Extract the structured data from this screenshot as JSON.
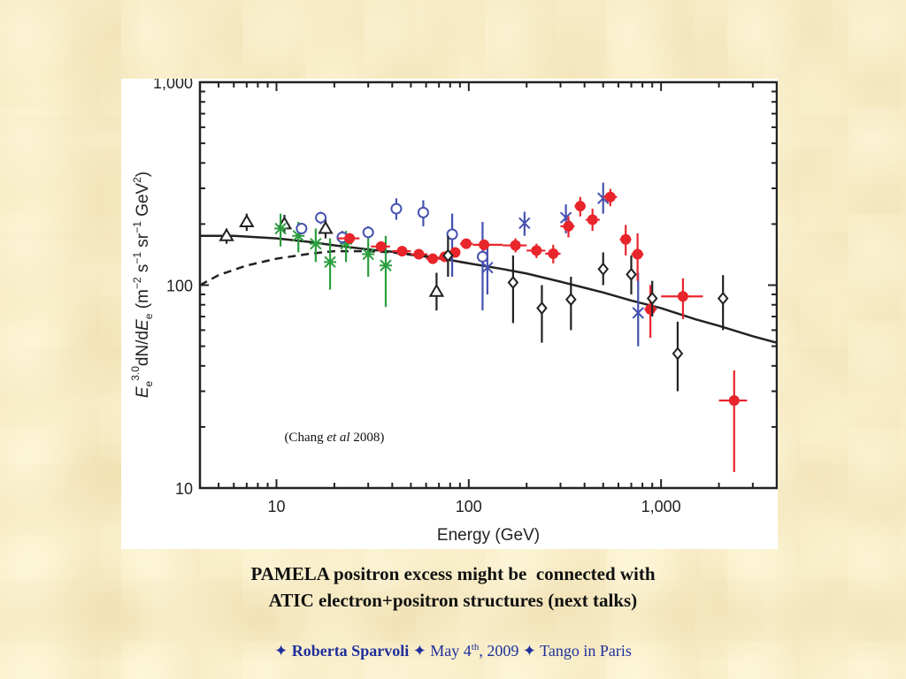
{
  "chart_data": {
    "type": "scatter",
    "xscale": "log",
    "yscale": "log",
    "xlim": [
      4,
      4000
    ],
    "ylim": [
      10,
      1000
    ],
    "xlabel": "Energy (GeV)",
    "ylabel_parts": {
      "E": "E",
      "sub_e": "e",
      "sup_exp": "3.0",
      "middle": "dN/d",
      "E2": "E",
      "sub_e2": "e",
      "units_open": " (m",
      "exp1": "−2",
      "s": " s",
      "exp2": "−1",
      "sr": " sr",
      "exp3": "−1",
      "gev": " GeV",
      "exp4": "2",
      "close": ")"
    },
    "xticks": [
      {
        "value": 10,
        "label": "10"
      },
      {
        "value": 100,
        "label": "100"
      },
      {
        "value": 1000,
        "label": "1,000"
      }
    ],
    "yticks": [
      {
        "value": 10,
        "label": "10"
      },
      {
        "value": 100,
        "label": "100"
      },
      {
        "value": 1000,
        "label": "1,000"
      }
    ],
    "annotation": {
      "pre": "(Chang ",
      "italic": "et al",
      "post": " 2008)",
      "x": 20,
      "y": 17
    },
    "lines": [
      {
        "style": "solid",
        "color": "#222222",
        "points": [
          [
            4,
            175
          ],
          [
            6,
            175
          ],
          [
            10,
            170
          ],
          [
            15,
            163
          ],
          [
            20,
            157
          ],
          [
            30,
            150
          ],
          [
            40,
            146
          ],
          [
            60,
            139
          ],
          [
            80,
            133
          ],
          [
            100,
            128
          ],
          [
            150,
            120
          ],
          [
            200,
            114
          ],
          [
            300,
            104
          ],
          [
            400,
            97
          ],
          [
            500,
            92
          ],
          [
            700,
            84
          ],
          [
            1000,
            77
          ],
          [
            1500,
            68
          ],
          [
            2000,
            63
          ],
          [
            3000,
            56
          ],
          [
            4000,
            52
          ]
        ]
      },
      {
        "style": "dashed",
        "color": "#222222",
        "points": [
          [
            4,
            100
          ],
          [
            5,
            112
          ],
          [
            7,
            125
          ],
          [
            10,
            135
          ],
          [
            15,
            143
          ],
          [
            20,
            147
          ],
          [
            30,
            147
          ],
          [
            40,
            145
          ],
          [
            60,
            138
          ],
          [
            80,
            133
          ],
          [
            100,
            128
          ]
        ]
      }
    ],
    "series": [
      {
        "marker": "triangle",
        "color": "#222222",
        "points": [
          {
            "x": 5.5,
            "y": 175,
            "ylo": 160,
            "yhi": 190
          },
          {
            "x": 7,
            "y": 205,
            "ylo": 185,
            "yhi": 225
          },
          {
            "x": 11,
            "y": 200,
            "ylo": 180,
            "yhi": 222
          },
          {
            "x": 18,
            "y": 190,
            "ylo": 170,
            "yhi": 212
          },
          {
            "x": 68,
            "y": 93,
            "ylo": 75,
            "yhi": 115
          }
        ]
      },
      {
        "marker": "star",
        "color": "#2a9e3e",
        "points": [
          {
            "x": 10.5,
            "y": 190,
            "ylo": 155,
            "yhi": 225
          },
          {
            "x": 13,
            "y": 175,
            "ylo": 145,
            "yhi": 205
          },
          {
            "x": 16,
            "y": 160,
            "ylo": 130,
            "yhi": 190
          },
          {
            "x": 19,
            "y": 130,
            "ylo": 95,
            "yhi": 170
          },
          {
            "x": 23,
            "y": 160,
            "ylo": 130,
            "yhi": 185
          },
          {
            "x": 30,
            "y": 142,
            "ylo": 110,
            "yhi": 180
          },
          {
            "x": 37,
            "y": 125,
            "ylo": 78,
            "yhi": 175
          }
        ]
      },
      {
        "marker": "circle",
        "color": "#4652b0",
        "points": [
          {
            "x": 13.5,
            "y": 190,
            "ylo": 180,
            "yhi": 200
          },
          {
            "x": 17,
            "y": 215,
            "ylo": 200,
            "yhi": 230
          },
          {
            "x": 22,
            "y": 172,
            "ylo": 160,
            "yhi": 185
          },
          {
            "x": 30,
            "y": 182,
            "ylo": 170,
            "yhi": 195
          },
          {
            "x": 42,
            "y": 238,
            "ylo": 210,
            "yhi": 268
          },
          {
            "x": 58,
            "y": 228,
            "ylo": 195,
            "yhi": 262
          },
          {
            "x": 82,
            "y": 178,
            "ylo": 110,
            "yhi": 225
          },
          {
            "x": 118,
            "y": 138,
            "ylo": 75,
            "yhi": 205
          }
        ]
      },
      {
        "marker": "cross",
        "color": "#4652b0",
        "points": [
          {
            "x": 125,
            "y": 122,
            "ylo": 90,
            "yhi": 160
          },
          {
            "x": 195,
            "y": 202,
            "ylo": 175,
            "yhi": 230
          },
          {
            "x": 320,
            "y": 215,
            "ylo": 180,
            "yhi": 250
          },
          {
            "x": 500,
            "y": 268,
            "ylo": 225,
            "yhi": 320
          },
          {
            "x": 760,
            "y": 73,
            "ylo": 50,
            "yhi": 115
          }
        ]
      },
      {
        "marker": "filled-circle",
        "color": "#e8252b",
        "points": [
          {
            "x": 24,
            "y": 170,
            "xlo": 21,
            "xhi": 27,
            "ylo": 162,
            "yhi": 178
          },
          {
            "x": 35,
            "y": 155,
            "xlo": 31,
            "xhi": 39,
            "ylo": 147,
            "yhi": 163
          },
          {
            "x": 45,
            "y": 147,
            "xlo": 40,
            "xhi": 50,
            "ylo": 140,
            "yhi": 154
          },
          {
            "x": 55,
            "y": 142,
            "xlo": 50,
            "xhi": 61,
            "ylo": 135,
            "yhi": 149
          },
          {
            "x": 65,
            "y": 135,
            "xlo": 60,
            "xhi": 72,
            "ylo": 128,
            "yhi": 142
          },
          {
            "x": 75,
            "y": 138,
            "xlo": 70,
            "xhi": 80,
            "ylo": 130,
            "yhi": 146
          },
          {
            "x": 85,
            "y": 145,
            "xlo": 80,
            "xhi": 90,
            "ylo": 137,
            "yhi": 153
          },
          {
            "x": 97,
            "y": 160,
            "xlo": 90,
            "xhi": 105,
            "ylo": 152,
            "yhi": 168
          },
          {
            "x": 120,
            "y": 158,
            "xlo": 105,
            "xhi": 150,
            "ylo": 148,
            "yhi": 168
          },
          {
            "x": 175,
            "y": 157,
            "xlo": 150,
            "xhi": 200,
            "ylo": 145,
            "yhi": 170
          },
          {
            "x": 225,
            "y": 148,
            "xlo": 200,
            "xhi": 250,
            "ylo": 136,
            "yhi": 160
          },
          {
            "x": 275,
            "y": 143,
            "xlo": 250,
            "xhi": 300,
            "ylo": 128,
            "yhi": 158
          },
          {
            "x": 330,
            "y": 195,
            "xlo": 300,
            "xhi": 355,
            "ylo": 172,
            "yhi": 218
          },
          {
            "x": 380,
            "y": 245,
            "xlo": 355,
            "xhi": 405,
            "ylo": 218,
            "yhi": 272
          },
          {
            "x": 440,
            "y": 210,
            "xlo": 405,
            "xhi": 480,
            "ylo": 185,
            "yhi": 238
          },
          {
            "x": 545,
            "y": 272,
            "xlo": 500,
            "xhi": 590,
            "ylo": 245,
            "yhi": 298
          },
          {
            "x": 655,
            "y": 168,
            "xlo": 610,
            "xhi": 700,
            "ylo": 140,
            "yhi": 198
          },
          {
            "x": 755,
            "y": 142,
            "xlo": 700,
            "xhi": 810,
            "ylo": 105,
            "yhi": 180
          },
          {
            "x": 880,
            "y": 76,
            "xlo": 820,
            "xhi": 950,
            "ylo": 55,
            "yhi": 100
          },
          {
            "x": 1300,
            "y": 88,
            "xlo": 1000,
            "xhi": 1650,
            "ylo": 68,
            "yhi": 108
          },
          {
            "x": 2400,
            "y": 27,
            "xlo": 2000,
            "xhi": 2800,
            "ylo": 12,
            "yhi": 38
          }
        ]
      },
      {
        "marker": "diamond",
        "color": "#222222",
        "points": [
          {
            "x": 78,
            "y": 140,
            "ylo": 110,
            "yhi": 175
          },
          {
            "x": 170,
            "y": 103,
            "ylo": 65,
            "yhi": 140
          },
          {
            "x": 240,
            "y": 77,
            "ylo": 52,
            "yhi": 100
          },
          {
            "x": 340,
            "y": 85,
            "ylo": 60,
            "yhi": 110
          },
          {
            "x": 500,
            "y": 120,
            "ylo": 100,
            "yhi": 145
          },
          {
            "x": 700,
            "y": 113,
            "ylo": 90,
            "yhi": 140
          },
          {
            "x": 900,
            "y": 86,
            "ylo": 70,
            "yhi": 105
          },
          {
            "x": 1220,
            "y": 46,
            "ylo": 30,
            "yhi": 66
          },
          {
            "x": 2100,
            "y": 86,
            "ylo": 60,
            "yhi": 112
          }
        ]
      }
    ]
  },
  "caption": {
    "line1": "PAMELA positron excess might be  connected with",
    "line2": "ATIC electron+positron structures (next talks)"
  },
  "footer": {
    "bullet": "✦",
    "name": "Roberta Sparvoli",
    "date_pre": "May 4",
    "date_sup": "th",
    "date_post": ", 2009",
    "event": "Tango in Paris"
  }
}
